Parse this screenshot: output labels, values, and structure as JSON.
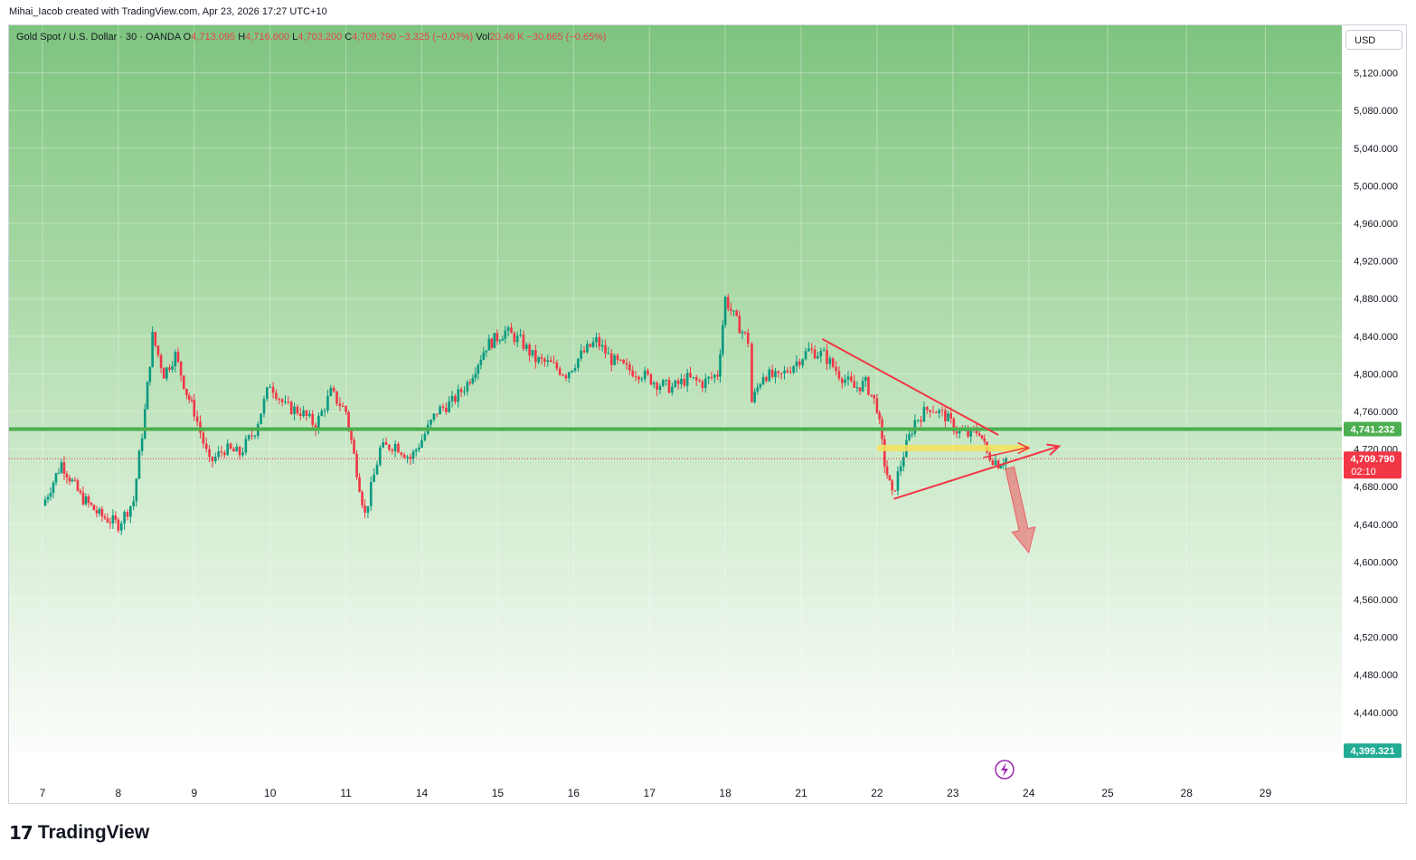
{
  "credit": "Mihai_Iacob created with TradingView.com, Apr 23, 2026 17:27 UTC+10",
  "legend": {
    "symbol": "Gold Spot / U.S. Dollar · 30 · OANDA",
    "o_key": "O",
    "o_val": "4,713.095",
    "h_key": "H",
    "h_val": "4,716.600",
    "l_key": "L",
    "l_val": "4,703.200",
    "c_key": "C",
    "c_val": "4,709.790",
    "change": "−3.325 (−0.07%)",
    "vol_key": "Vol",
    "vol_val": "20.46 K",
    "vol_change": "−30.665 (−0.65%)"
  },
  "currency_button": "USD",
  "logo": {
    "mark": "17",
    "name": "TradingView"
  },
  "colors": {
    "up": "#089981",
    "down": "#f23645",
    "support": "#4caf50",
    "trend": "#f23645",
    "zone": "#f7e25a",
    "current": "#f23645",
    "badge_green": "#4caf50",
    "badge_teal": "#22ab94"
  },
  "badges": {
    "support": "4,741.232",
    "current": "4,709.790",
    "countdown": "02:10",
    "low": "4,399.321"
  },
  "chart_data": {
    "type": "candlestick",
    "title": "Gold Spot / U.S. Dollar · 30 · OANDA",
    "ylim": [
      4360,
      5160
    ],
    "y_ticks": [
      5120,
      5080,
      5040,
      5000,
      4960,
      4920,
      4880,
      4840,
      4800,
      4760,
      4720,
      4680,
      4640,
      4600,
      4560,
      4520,
      4480,
      4440
    ],
    "y_tick_labels": [
      "5,120.000",
      "5,080.000",
      "5,040.000",
      "5,000.000",
      "4,960.000",
      "4,920.000",
      "4,880.000",
      "4,840.000",
      "4,800.000",
      "4,760.000",
      "4,720.000",
      "4,680.000",
      "4,640.000",
      "4,600.000",
      "4,560.000",
      "4,520.000",
      "4,480.000",
      "4,440.000"
    ],
    "x_tick_labels": [
      "7",
      "8",
      "9",
      "10",
      "11",
      "14",
      "15",
      "16",
      "17",
      "18",
      "21",
      "22",
      "23",
      "24",
      "25",
      "28",
      "29"
    ],
    "x_tick_index": [
      0,
      1,
      2,
      3,
      4,
      5,
      6,
      7,
      8,
      9,
      10,
      11,
      12,
      13,
      14.04,
      15.08,
      16.12
    ],
    "session_close_prices": [
      [
        0,
        4660
      ],
      [
        0.25,
        4705
      ],
      [
        0.5,
        4670
      ],
      [
        0.75,
        4650
      ],
      [
        1.0,
        4640
      ],
      [
        1.2,
        4665
      ],
      [
        1.35,
        4760
      ],
      [
        1.45,
        4840
      ],
      [
        1.6,
        4800
      ],
      [
        1.75,
        4820
      ],
      [
        1.9,
        4780
      ],
      [
        2.0,
        4760
      ],
      [
        2.2,
        4705
      ],
      [
        2.4,
        4720
      ],
      [
        2.6,
        4715
      ],
      [
        2.8,
        4740
      ],
      [
        3.0,
        4790
      ],
      [
        3.2,
        4765
      ],
      [
        3.4,
        4760
      ],
      [
        3.6,
        4745
      ],
      [
        3.8,
        4780
      ],
      [
        4.0,
        4760
      ],
      [
        4.25,
        4650
      ],
      [
        4.45,
        4720
      ],
      [
        4.65,
        4725
      ],
      [
        4.85,
        4710
      ],
      [
        5.0,
        4730
      ],
      [
        5.2,
        4760
      ],
      [
        5.4,
        4770
      ],
      [
        5.6,
        4790
      ],
      [
        5.85,
        4830
      ],
      [
        6.1,
        4845
      ],
      [
        6.3,
        4835
      ],
      [
        6.5,
        4815
      ],
      [
        6.7,
        4810
      ],
      [
        6.9,
        4800
      ],
      [
        7.1,
        4820
      ],
      [
        7.3,
        4835
      ],
      [
        7.5,
        4815
      ],
      [
        7.7,
        4805
      ],
      [
        7.9,
        4800
      ],
      [
        8.1,
        4790
      ],
      [
        8.3,
        4785
      ],
      [
        8.5,
        4795
      ],
      [
        8.7,
        4790
      ],
      [
        8.9,
        4800
      ],
      [
        9.0,
        4880
      ],
      [
        9.15,
        4855
      ],
      [
        9.3,
        4835
      ],
      [
        9.35,
        4770
      ],
      [
        9.5,
        4800
      ],
      [
        9.7,
        4795
      ],
      [
        9.9,
        4810
      ],
      [
        10.1,
        4825
      ],
      [
        10.3,
        4820
      ],
      [
        10.5,
        4800
      ],
      [
        10.7,
        4785
      ],
      [
        10.85,
        4790
      ],
      [
        11.0,
        4765
      ],
      [
        11.1,
        4705
      ],
      [
        11.2,
        4670
      ],
      [
        11.35,
        4715
      ],
      [
        11.5,
        4750
      ],
      [
        11.7,
        4765
      ],
      [
        11.9,
        4755
      ],
      [
        12.05,
        4740
      ],
      [
        12.2,
        4735
      ],
      [
        12.35,
        4740
      ],
      [
        12.45,
        4715
      ],
      [
        12.6,
        4705
      ],
      [
        12.7,
        4710
      ]
    ],
    "support_level": 4741.232,
    "current_price": 4709.79,
    "drawings": [
      {
        "type": "trendline",
        "from": [
          10.28,
          4837
        ],
        "to": [
          12.6,
          4735
        ]
      },
      {
        "type": "trendline",
        "from": [
          11.22,
          4667
        ],
        "to": [
          13.4,
          4723
        ]
      },
      {
        "type": "zone",
        "from": [
          11.0,
          4721
        ],
        "to": [
          13.0,
          4721
        ]
      },
      {
        "type": "arrow",
        "from": [
          12.4,
          4711
        ],
        "to": [
          13.0,
          4722
        ]
      },
      {
        "type": "arrow",
        "from": [
          12.75,
          4700
        ],
        "to": [
          13.0,
          4610
        ]
      }
    ]
  }
}
